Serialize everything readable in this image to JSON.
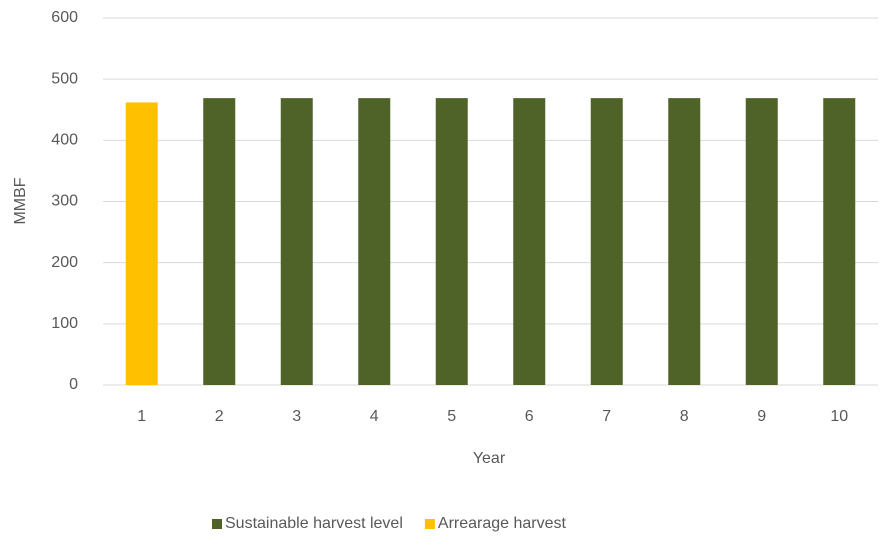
{
  "chart_data": {
    "type": "bar",
    "stacked": true,
    "categories": [
      "1",
      "2",
      "3",
      "4",
      "5",
      "6",
      "7",
      "8",
      "9",
      "10"
    ],
    "series": [
      {
        "name": "Sustainable harvest level",
        "color": "#4f6228",
        "values": [
          null,
          469,
          469,
          469,
          469,
          469,
          469,
          469,
          469,
          469
        ]
      },
      {
        "name": "Arrearage harvest",
        "color": "#ffc000",
        "values": [
          462,
          null,
          null,
          null,
          null,
          null,
          null,
          null,
          null,
          null
        ]
      }
    ],
    "xlabel": "Year",
    "ylabel": "MMBF",
    "ylim": [
      0,
      600
    ],
    "yticks": [
      0,
      100,
      200,
      300,
      400,
      500,
      600
    ],
    "grid": true,
    "legend": "bottom"
  }
}
